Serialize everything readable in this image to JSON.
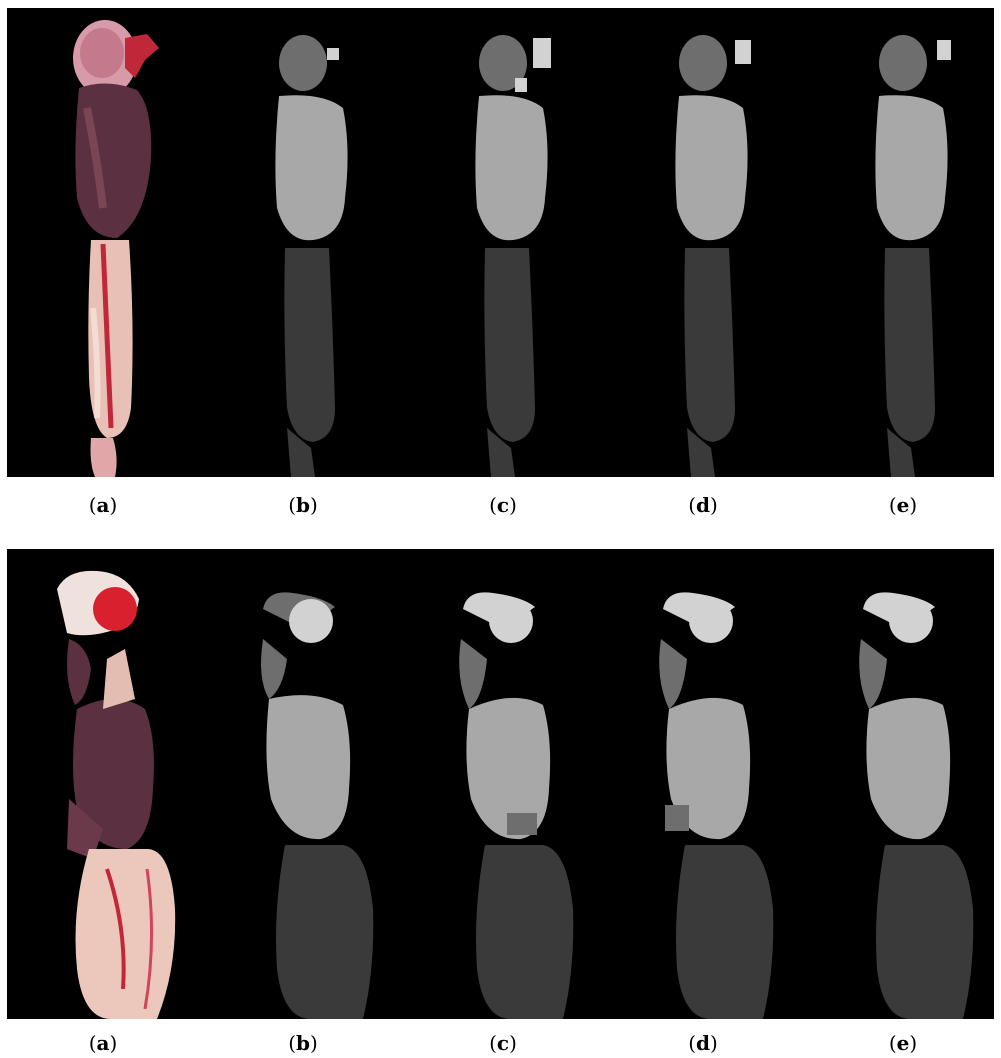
{
  "figure": {
    "rows": [
      {
        "id": "top",
        "captions": [
          {
            "open": "(",
            "letter": "a",
            "close": ")"
          },
          {
            "open": "(",
            "letter": "b",
            "close": ")"
          },
          {
            "open": "(",
            "letter": "c",
            "close": ")"
          },
          {
            "open": "(",
            "letter": "d",
            "close": ")"
          },
          {
            "open": "(",
            "letter": "e",
            "close": ")"
          }
        ]
      },
      {
        "id": "bottom",
        "captions": [
          {
            "open": "(",
            "letter": "a",
            "close": ")"
          },
          {
            "open": "(",
            "letter": "b",
            "close": ")"
          },
          {
            "open": "(",
            "letter": "c",
            "close": ")"
          },
          {
            "open": "(",
            "letter": "d",
            "close": ")"
          },
          {
            "open": "(",
            "letter": "e",
            "close": ")"
          }
        ]
      }
    ],
    "colors": {
      "background": "#000000",
      "segment_dark": "#3a3a3a",
      "segment_mid": "#6e6e6e",
      "segment_light": "#a8a8a8",
      "segment_bright": "#d2d2d2",
      "tissue_purple": "#5b3040",
      "tissue_pink": "#e8b8b0",
      "tissue_red": "#c0283a"
    }
  }
}
